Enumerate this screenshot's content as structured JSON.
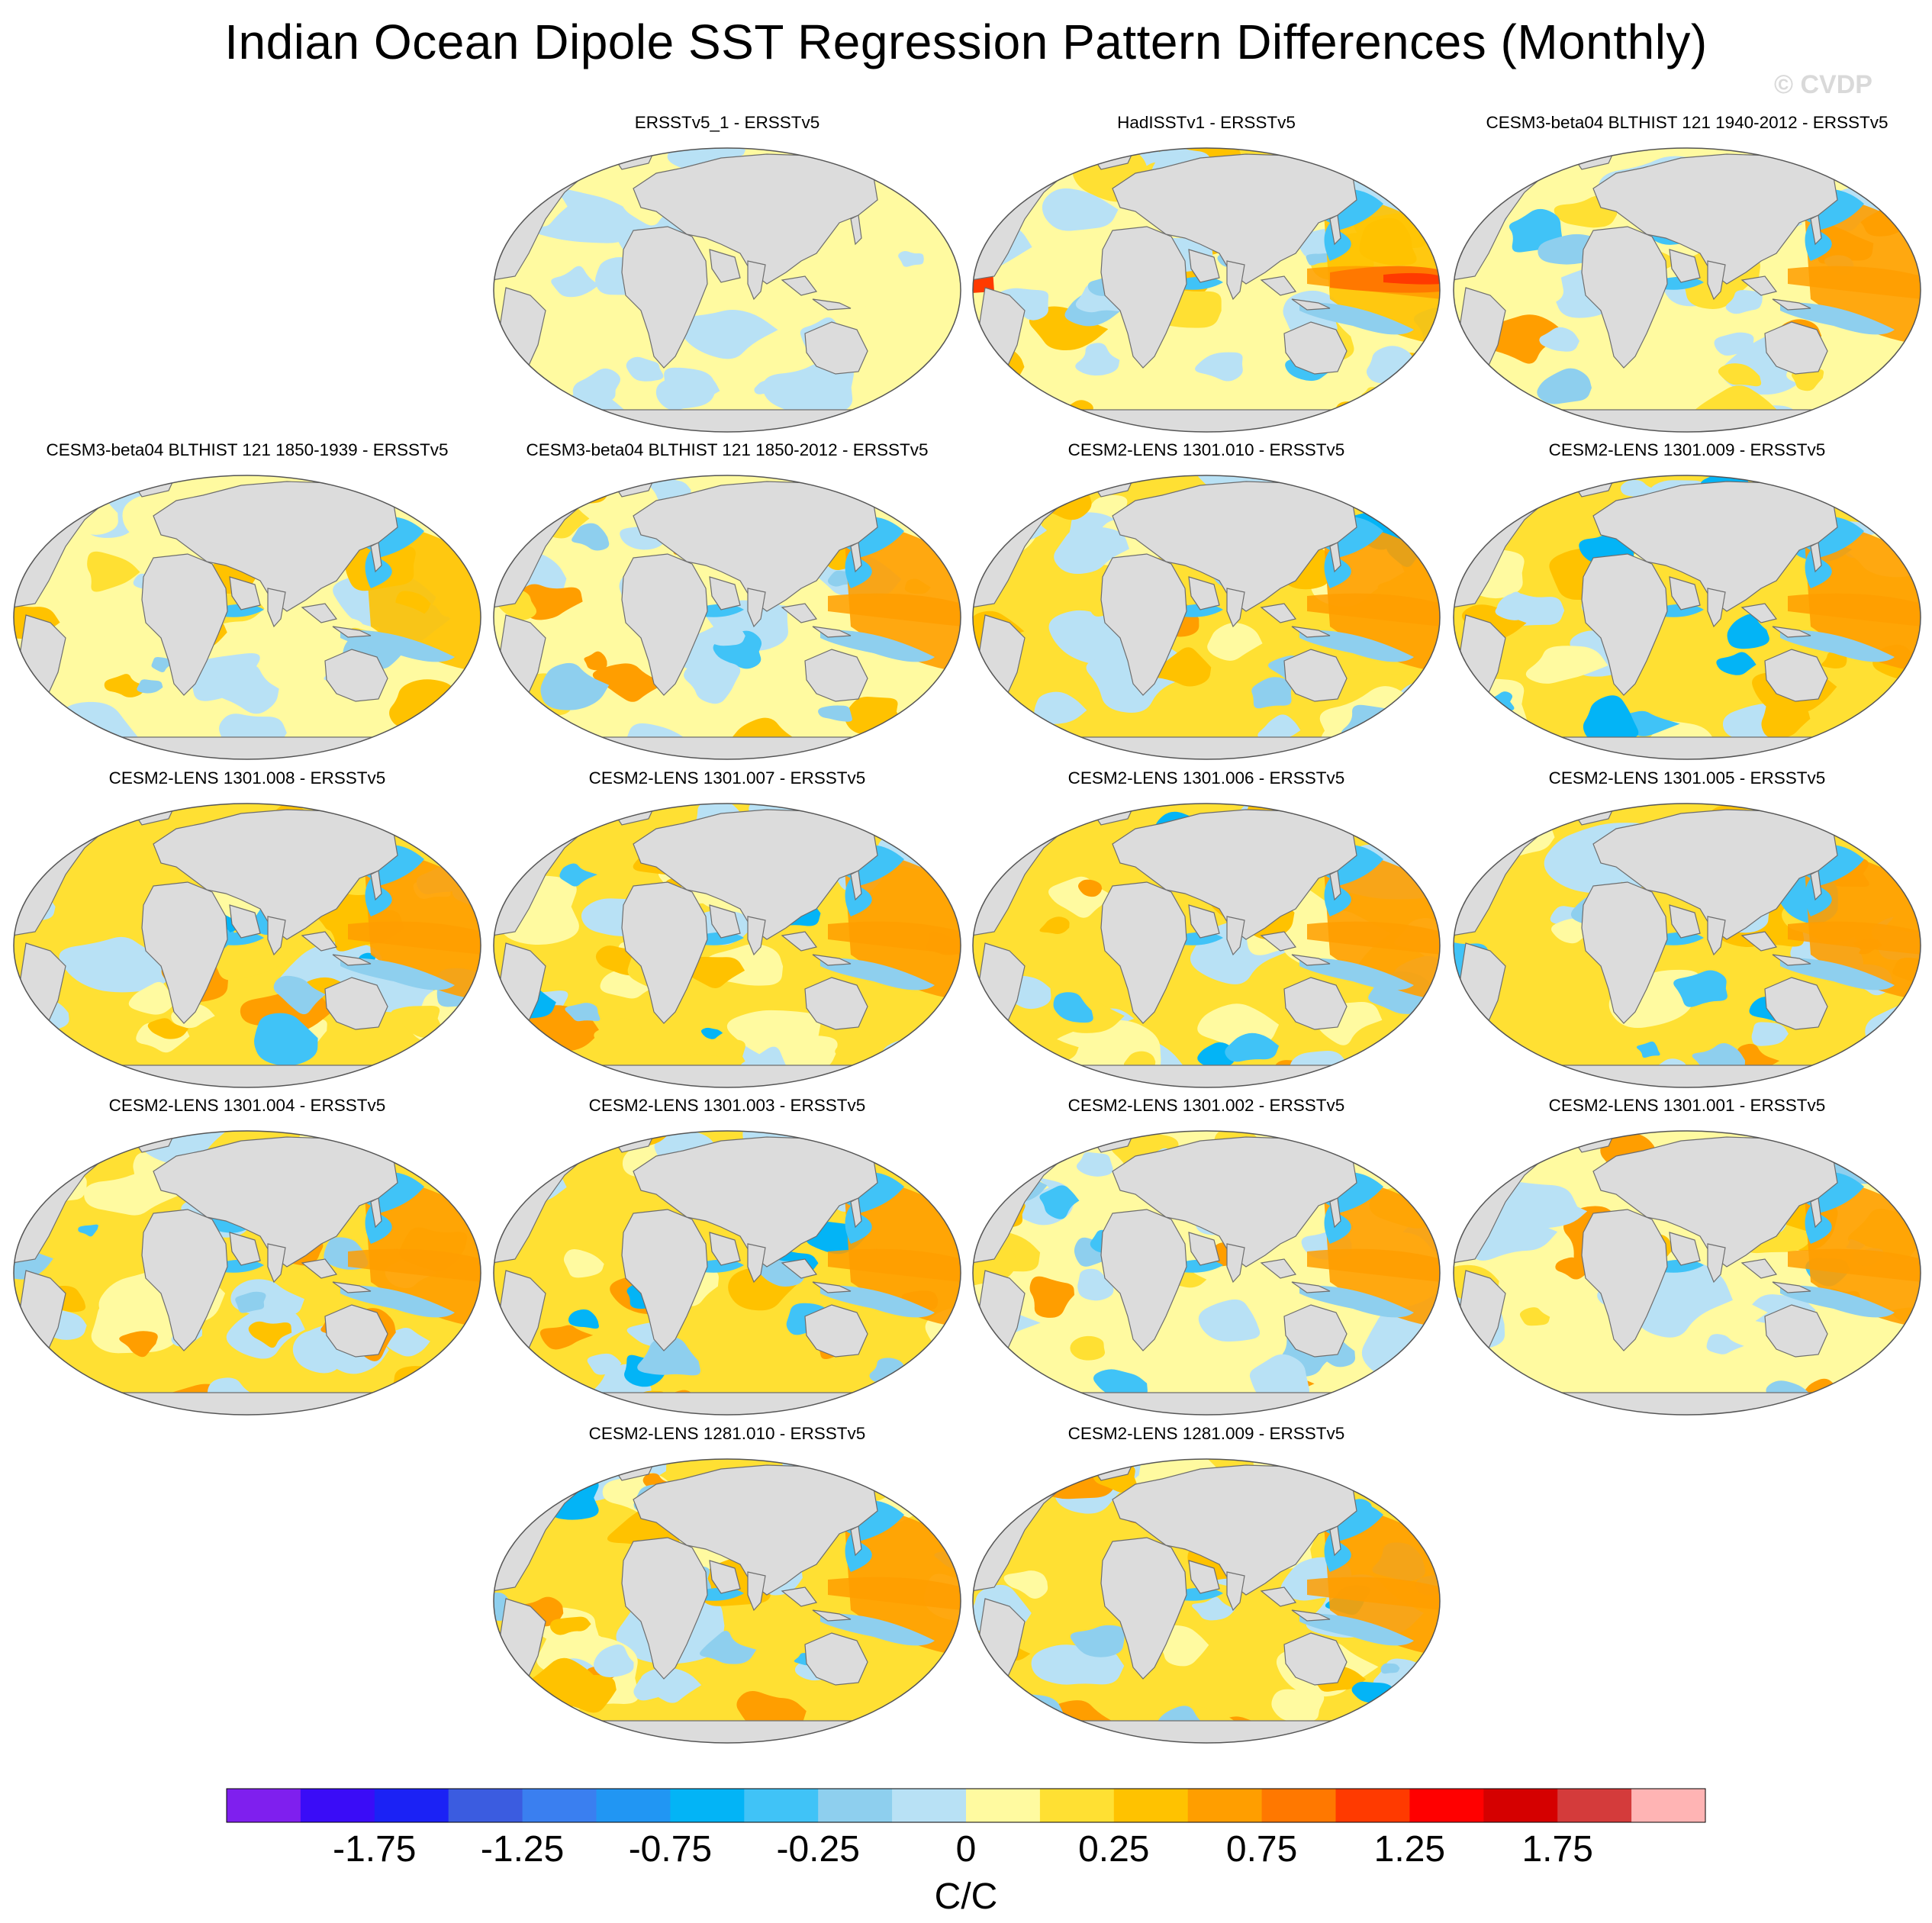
{
  "title": "Indian Ocean Dipole SST Regression Pattern Differences (Monthly)",
  "copyright": "© CVDP",
  "panels": [
    {
      "label": "ERSSTv5_1 - ERSSTv5",
      "row": 0,
      "col": 1,
      "style": "obs_small"
    },
    {
      "label": "HadISSTv1 - ERSSTv5",
      "row": 0,
      "col": 2,
      "style": "obs_noisy"
    },
    {
      "label": "CESM3-beta04 BLTHIST 121 1940-2012 - ERSSTv5",
      "row": 0,
      "col": 3,
      "style": "model"
    },
    {
      "label": "CESM3-beta04 BLTHIST 121 1850-1939 - ERSSTv5",
      "row": 1,
      "col": 0,
      "style": "model_weak"
    },
    {
      "label": "CESM3-beta04 BLTHIST 121 1850-2012 - ERSSTv5",
      "row": 1,
      "col": 1,
      "style": "model"
    },
    {
      "label": "CESM2-LENS 1301.010 - ERSSTv5",
      "row": 1,
      "col": 2,
      "style": "model_strong"
    },
    {
      "label": "CESM2-LENS 1301.009 - ERSSTv5",
      "row": 1,
      "col": 3,
      "style": "model_strong"
    },
    {
      "label": "CESM2-LENS 1301.008 - ERSSTv5",
      "row": 2,
      "col": 0,
      "style": "model_strong"
    },
    {
      "label": "CESM2-LENS 1301.007 - ERSSTv5",
      "row": 2,
      "col": 1,
      "style": "model_strong"
    },
    {
      "label": "CESM2-LENS 1301.006 - ERSSTv5",
      "row": 2,
      "col": 2,
      "style": "model_strong"
    },
    {
      "label": "CESM2-LENS 1301.005 - ERSSTv5",
      "row": 2,
      "col": 3,
      "style": "model_strong"
    },
    {
      "label": "CESM2-LENS 1301.004 - ERSSTv5",
      "row": 3,
      "col": 0,
      "style": "model_strong"
    },
    {
      "label": "CESM2-LENS 1301.003 - ERSSTv5",
      "row": 3,
      "col": 1,
      "style": "model_strong"
    },
    {
      "label": "CESM2-LENS 1301.002 - ERSSTv5",
      "row": 3,
      "col": 2,
      "style": "model"
    },
    {
      "label": "CESM2-LENS 1301.001 - ERSSTv5",
      "row": 3,
      "col": 3,
      "style": "model"
    },
    {
      "label": "CESM2-LENS 1281.010 - ERSSTv5",
      "row": 4,
      "col": 1,
      "style": "model_strong"
    },
    {
      "label": "CESM2-LENS 1281.009 - ERSSTv5",
      "row": 4,
      "col": 2,
      "style": "model_strong"
    }
  ],
  "colorbar": {
    "colors": [
      "#7f1fee",
      "#3a0cf7",
      "#1b22f5",
      "#3b5ce0",
      "#3a7ff0",
      "#2196f3",
      "#03b4f6",
      "#40c3f7",
      "#8ecfee",
      "#b8e1f5",
      "#fffaa0",
      "#ffe033",
      "#ffc200",
      "#ff9e00",
      "#ff7800",
      "#ff3a00",
      "#ff0000",
      "#d50000",
      "#d43b3b",
      "#ffb4b4"
    ],
    "tick_labels": [
      "-1.75",
      "-1.25",
      "-0.75",
      "-0.25",
      "0",
      "0.25",
      "0.75",
      "1.25",
      "1.75"
    ],
    "tick_values": [
      -1.75,
      -1.25,
      -0.75,
      -0.25,
      0,
      0.25,
      0.75,
      1.25,
      1.75
    ],
    "levels": [
      -2.0,
      -1.75,
      -1.5,
      -1.25,
      -1.0,
      -0.75,
      -0.5,
      -0.25,
      -0.1,
      0,
      0.1,
      0.25,
      0.5,
      0.75,
      1.0,
      1.25,
      1.5,
      1.75,
      2.0
    ],
    "units": "C/C"
  },
  "colors": {
    "land": "#dcdcdc",
    "coast": "#6e6e6e",
    "frame": "#555555"
  }
}
